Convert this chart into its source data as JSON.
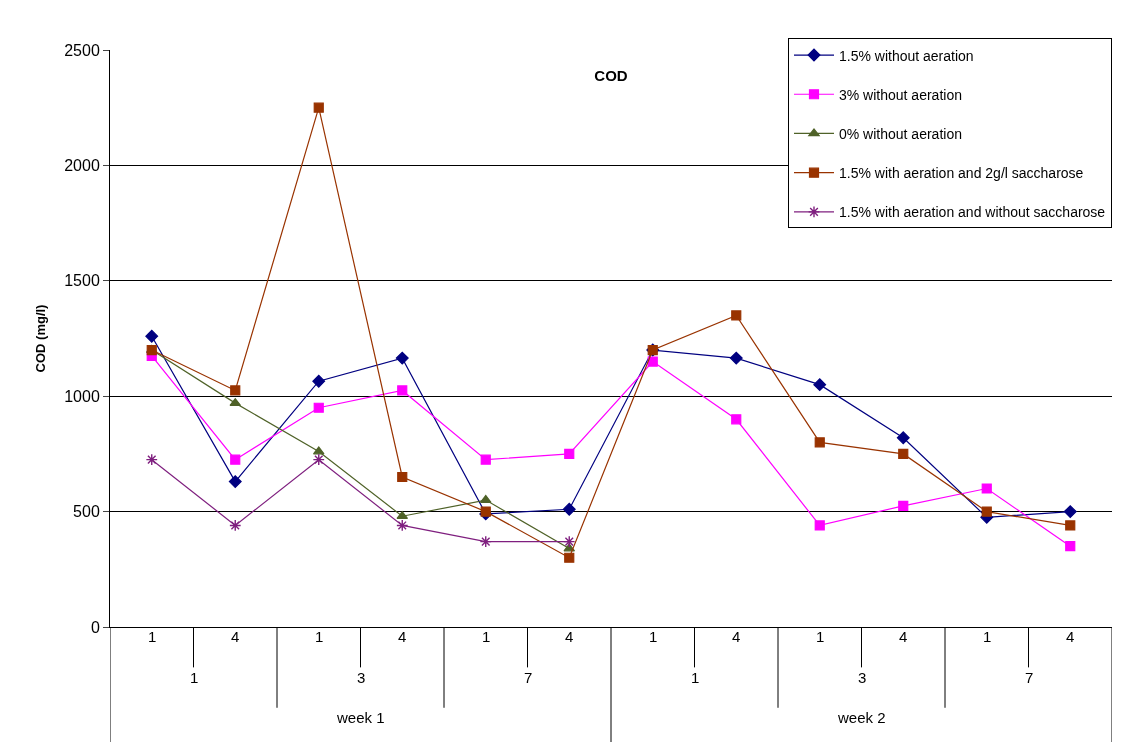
{
  "chart_data": {
    "type": "line",
    "title": "COD",
    "ylabel": "COD (mg/l)",
    "categories": [
      "1",
      "4",
      "1",
      "4",
      "1",
      "4",
      "1",
      "4",
      "1",
      "4",
      "1",
      "4"
    ],
    "annotations": [
      "1",
      "3",
      "7",
      "1",
      "3",
      "7",
      "week 1",
      "week 2"
    ],
    "ylim": [
      0,
      2500
    ],
    "yticks": [
      0,
      500,
      1000,
      1500,
      2000,
      2500
    ],
    "grid": "y",
    "legend": "top right",
    "series": [
      {
        "name": "1.5% without aeration",
        "color": "#000080",
        "marker": "diamond",
        "values": [
          1260,
          630,
          1065,
          1165,
          490,
          510,
          1200,
          1165,
          1050,
          820,
          475,
          500
        ]
      },
      {
        "name": "3% without aeration",
        "color": "#ff00ff",
        "marker": "square",
        "values": [
          1175,
          725,
          950,
          1025,
          725,
          750,
          1150,
          900,
          440,
          525,
          600,
          350
        ]
      },
      {
        "name": "0% without aeration",
        "color": "#4f6228",
        "marker": "triangle",
        "values": [
          1200,
          970,
          760,
          480,
          550,
          340,
          null,
          null,
          null,
          null,
          null,
          null
        ]
      },
      {
        "name": "1.5% with aeration and 2g/l saccharose",
        "color": "#993300",
        "marker": "square",
        "values": [
          1200,
          1025,
          2250,
          650,
          500,
          300,
          1200,
          1350,
          800,
          750,
          500,
          440
        ]
      },
      {
        "name": "1.5% with aeration and without saccharose",
        "color": "#7f1f7f",
        "marker": "cross",
        "values": [
          725,
          440,
          725,
          440,
          370,
          370,
          null,
          null,
          null,
          null,
          null,
          null
        ]
      }
    ]
  }
}
